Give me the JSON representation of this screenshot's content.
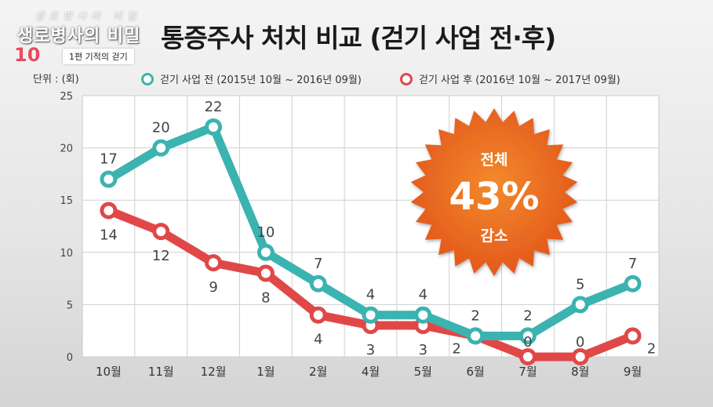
{
  "program": {
    "top_text": "생로병사의 비밀",
    "name": "생로병사의 비밀",
    "number": "10",
    "episode": "1편 기적의 걷기"
  },
  "title": "통증주사 처치 비교 (걷기 사업 전·후)",
  "unit_label": "단위 : (회)",
  "badge": {
    "top": "전체",
    "value": "43%",
    "bottom": "감소",
    "color": "#e8601c"
  },
  "colors": {
    "before": "#3bb3b0",
    "after": "#e04848",
    "before_label": "#333333"
  },
  "chart_data": {
    "type": "line",
    "categories": [
      "10월",
      "11월",
      "12월",
      "1월",
      "2월",
      "4월",
      "5월",
      "6월",
      "7월",
      "8월",
      "9월"
    ],
    "ylim": [
      0,
      25
    ],
    "yticks": [
      0,
      5,
      10,
      15,
      20,
      25
    ],
    "grid": true,
    "legend_position": "top",
    "series": [
      {
        "name": "걷기 사업 전 (2015년 10월 ~ 2016년 09월)",
        "values": [
          17,
          20,
          22,
          10,
          7,
          4,
          4,
          2,
          2,
          5,
          7
        ],
        "labels": [
          "17",
          "20",
          "22",
          "10",
          "7",
          "4",
          "4",
          "2",
          "2",
          "5",
          "7"
        ]
      },
      {
        "name": "걷기 사업 후 (2016년 10월 ~ 2017년 09월)",
        "values": [
          14,
          12,
          9,
          8,
          4,
          3,
          3,
          2,
          0,
          0,
          2
        ],
        "labels": [
          "14",
          "12",
          "9",
          "8",
          "4",
          "3",
          "3",
          "2",
          "0",
          "0",
          "2"
        ]
      }
    ]
  }
}
